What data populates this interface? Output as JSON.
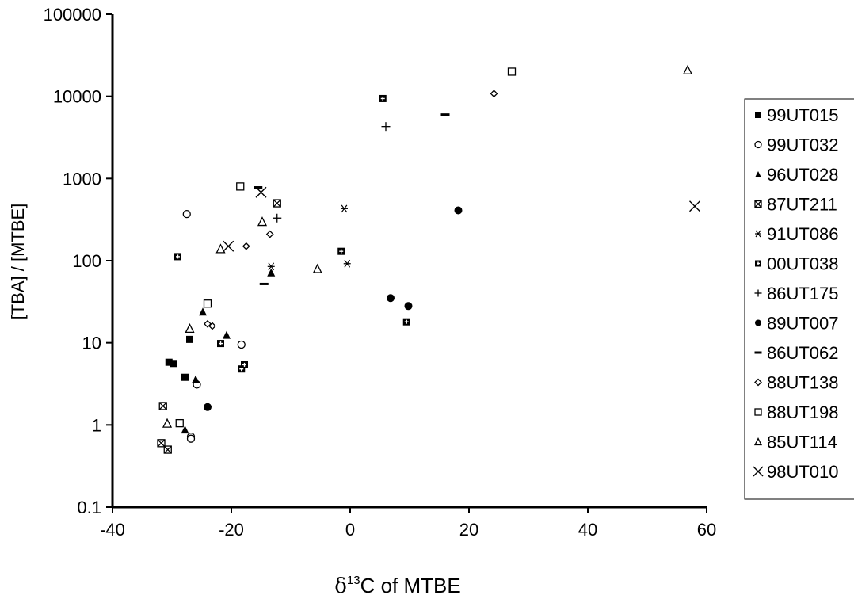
{
  "chart_data": {
    "type": "scatter",
    "title": "",
    "xlabel_prefix": "δ",
    "xlabel_sup": "13",
    "xlabel_suffix": "C of MTBE",
    "ylabel": "[TBA] / [MTBE]",
    "xlim": [
      -40,
      60
    ],
    "ylim": [
      0.1,
      100000
    ],
    "yscale": "log",
    "x_ticks": [
      "-40",
      "-20",
      "0",
      "20",
      "40",
      "60"
    ],
    "y_ticks": [
      "0.1",
      "1",
      "10",
      "100",
      "1000",
      "10000",
      "100000"
    ],
    "grid": false,
    "legend_position": "right",
    "series": [
      {
        "name": "99UT015",
        "marker": "filled-square",
        "points": [
          [
            -30.5,
            5.8
          ],
          [
            -29.8,
            5.6
          ],
          [
            -27,
            11
          ],
          [
            -27.8,
            3.8
          ]
        ]
      },
      {
        "name": "99UT032",
        "marker": "open-circle",
        "points": [
          [
            -27.5,
            370
          ],
          [
            -18.3,
            9.5
          ],
          [
            -25.8,
            3.1
          ],
          [
            -26.8,
            0.72
          ],
          [
            -26.8,
            0.68
          ]
        ]
      },
      {
        "name": "96UT028",
        "marker": "filled-triangle",
        "points": [
          [
            -24.8,
            24
          ],
          [
            -20.8,
            12.5
          ],
          [
            -26,
            3.6
          ],
          [
            -27.8,
            0.88
          ],
          [
            -13.3,
            72
          ]
        ]
      },
      {
        "name": "87UT211",
        "marker": "x-square",
        "points": [
          [
            -31.5,
            1.7
          ],
          [
            -31.8,
            0.6
          ],
          [
            -30.7,
            0.5
          ],
          [
            -12.3,
            500
          ]
        ]
      },
      {
        "name": "91UT086",
        "marker": "asterisk",
        "points": [
          [
            -13.3,
            85
          ],
          [
            -1,
            430
          ],
          [
            -0.5,
            92
          ]
        ]
      },
      {
        "name": "00UT038",
        "marker": "plus-square",
        "points": [
          [
            -29,
            112
          ],
          [
            -21.8,
            9.8
          ],
          [
            -18.3,
            4.8
          ],
          [
            -17.8,
            5.4
          ],
          [
            5.5,
            9400
          ],
          [
            -1.5,
            130
          ],
          [
            9.5,
            18
          ]
        ]
      },
      {
        "name": "86UT175",
        "marker": "plus",
        "points": [
          [
            -12.3,
            330
          ],
          [
            6,
            4300
          ]
        ]
      },
      {
        "name": "89UT007",
        "marker": "filled-circle",
        "points": [
          [
            -24,
            1.65
          ],
          [
            18.2,
            410
          ],
          [
            6.8,
            35
          ],
          [
            9.8,
            28
          ]
        ]
      },
      {
        "name": "86UT062",
        "marker": "dash",
        "points": [
          [
            -15.5,
            780
          ],
          [
            -14.5,
            52
          ],
          [
            16,
            6000
          ]
        ]
      },
      {
        "name": "88UT138",
        "marker": "open-diamond",
        "points": [
          [
            -24,
            17
          ],
          [
            -23.2,
            16
          ],
          [
            -17.5,
            150
          ],
          [
            -13.5,
            210
          ],
          [
            24.2,
            10800
          ]
        ]
      },
      {
        "name": "88UT198",
        "marker": "open-square",
        "points": [
          [
            -24,
            30
          ],
          [
            -28.7,
            1.05
          ],
          [
            -18.5,
            800
          ],
          [
            27.2,
            20000
          ]
        ]
      },
      {
        "name": "85UT114",
        "marker": "open-triangle",
        "points": [
          [
            -27,
            15
          ],
          [
            -30.8,
            1.05
          ],
          [
            -21.8,
            140
          ],
          [
            -14.8,
            300
          ],
          [
            -5.5,
            80
          ],
          [
            56.8,
            21000
          ]
        ]
      },
      {
        "name": "98UT010",
        "marker": "x",
        "points": [
          [
            -20.5,
            150
          ],
          [
            -15,
            680
          ],
          [
            58,
            460
          ]
        ]
      }
    ]
  }
}
